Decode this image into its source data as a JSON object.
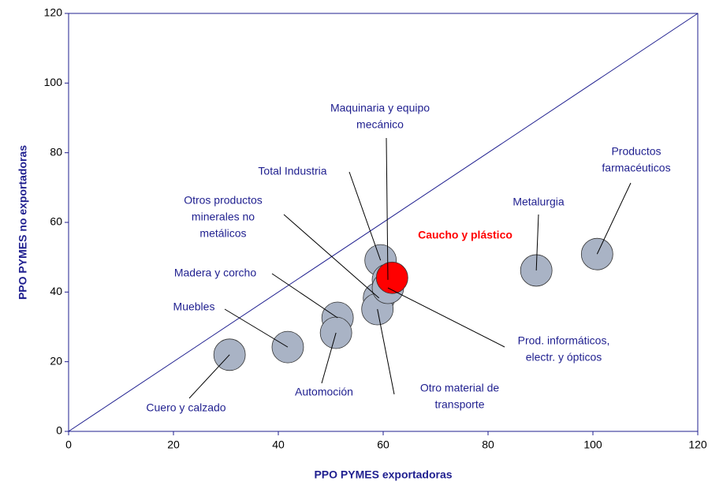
{
  "chart_data": {
    "type": "scatter",
    "xlabel": "PPO PYMES exportadoras",
    "ylabel": "PPO PYMES no exportadoras",
    "xlim": [
      0,
      120
    ],
    "ylim": [
      0,
      120
    ],
    "xticks": [
      0,
      20,
      40,
      60,
      80,
      100,
      120
    ],
    "yticks": [
      0,
      20,
      40,
      60,
      80,
      100,
      120
    ],
    "color": "#a9b3c5",
    "highlight_color": "#ff0000",
    "points": [
      {
        "name": [
          "Cuero y calzado"
        ],
        "x": 30.7,
        "y": 22.0
      },
      {
        "name": [
          "Muebles"
        ],
        "x": 41.8,
        "y": 24.2
      },
      {
        "name": [
          "Madera y corcho"
        ],
        "x": 51.3,
        "y": 32.6
      },
      {
        "name": [
          "Automoción"
        ],
        "x": 51.0,
        "y": 28.3
      },
      {
        "name": [
          "Otros productos",
          "minerales no",
          "metálicos"
        ],
        "x": 59.2,
        "y": 38.3
      },
      {
        "name": [
          "Total Industria"
        ],
        "x": 59.5,
        "y": 49.1
      },
      {
        "name": [
          "Otro material de",
          "transporte"
        ],
        "x": 58.9,
        "y": 35.1
      },
      {
        "name": [
          "Maquinaria y equipo",
          "mecánico"
        ],
        "x": 60.9,
        "y": 43.5
      },
      {
        "name": [
          "Prod. informáticos,",
          "electr. y ópticos"
        ],
        "x": 60.9,
        "y": 41.2
      },
      {
        "name": [
          "Caucho y plástico"
        ],
        "x": 61.7,
        "y": 44.1,
        "highlight": true
      },
      {
        "name": [
          "Metalurgia"
        ],
        "x": 89.2,
        "y": 46.2
      },
      {
        "name": [
          "Productos",
          "farmacéuticos"
        ],
        "x": 100.8,
        "y": 50.9
      }
    ]
  }
}
